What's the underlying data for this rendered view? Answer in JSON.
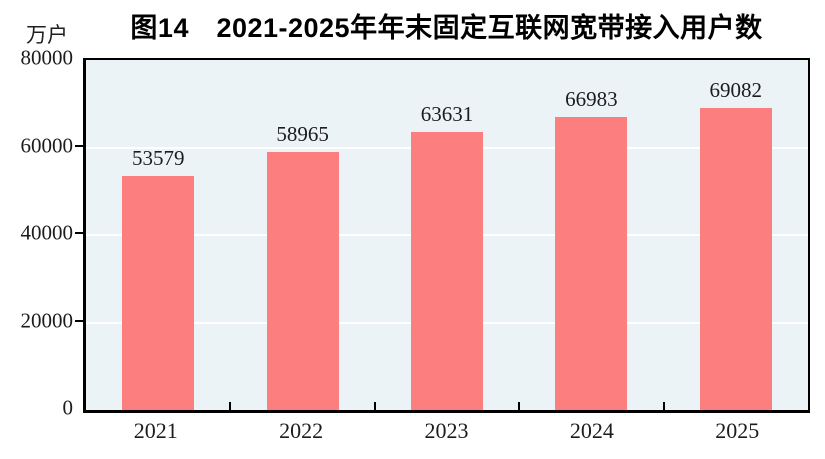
{
  "title": "图14　2021-2025年年末固定互联网宽带接入用户数",
  "unit_label": "万户",
  "colors": {
    "bar": "#FD7E7E",
    "plot_background": "#EBF3F7",
    "gridline": "#FFFFFF",
    "axis": "#000000",
    "text": "#1C1C1C"
  },
  "chart_data": {
    "type": "bar",
    "title": "图14　2021-2025年年末固定互联网宽带接入用户数",
    "categories": [
      "2021",
      "2022",
      "2023",
      "2024",
      "2025"
    ],
    "values": [
      53579,
      58965,
      63631,
      66983,
      69082
    ],
    "xlabel": "",
    "ylabel": "万户",
    "ylim": [
      0,
      80000
    ],
    "yticks": [
      0,
      20000,
      40000,
      60000,
      80000
    ],
    "grid": "horizontal",
    "legend": "none",
    "data_labels": true,
    "bar_width_fraction": 0.5
  }
}
